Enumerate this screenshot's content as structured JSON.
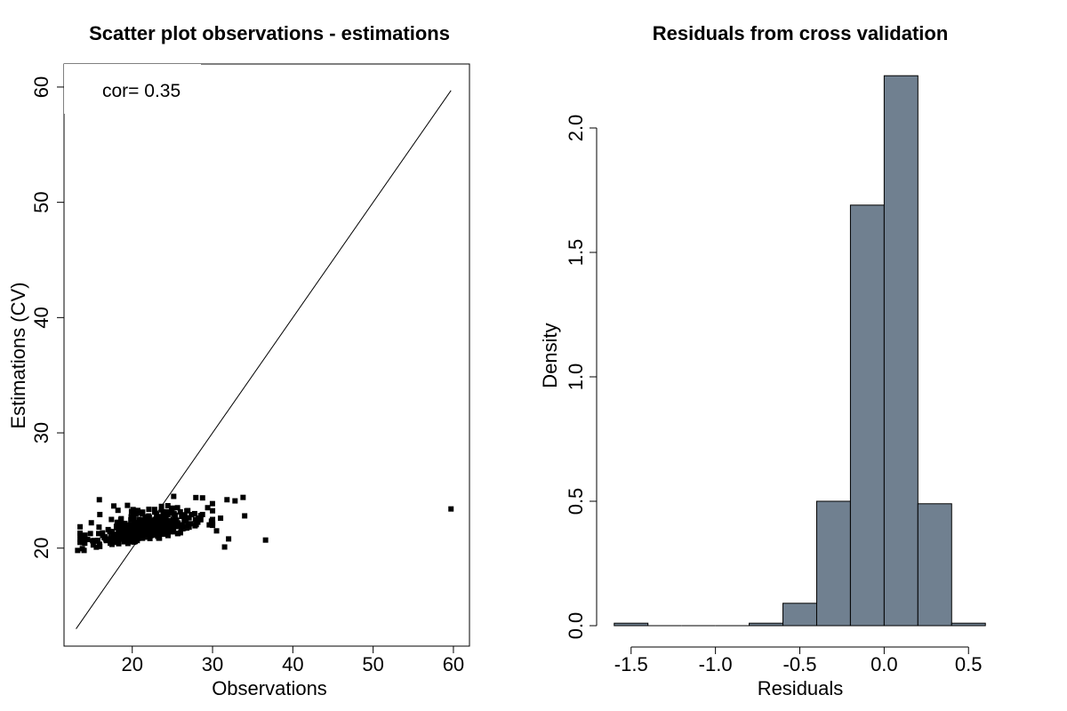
{
  "chart_data": [
    {
      "type": "scatter",
      "title": "Scatter plot observations - estimations",
      "xlabel": "Observations",
      "ylabel": "Estimations (CV)",
      "xlim": [
        11.5,
        62
      ],
      "ylim": [
        11.5,
        62
      ],
      "xticks": [
        20,
        30,
        40,
        50,
        60
      ],
      "yticks": [
        20,
        30,
        40,
        50,
        60
      ],
      "annotation": "cor= 0.35",
      "reference_line": {
        "x": [
          13,
          59.7
        ],
        "y": [
          13,
          59.7
        ]
      },
      "point_summary": {
        "count": 400,
        "x_range": [
          13,
          34
        ],
        "y_range": [
          19.5,
          24.5
        ],
        "center": [
          21.5,
          21.5
        ]
      },
      "points": [
        {
          "x": 59.7,
          "y": 23.4
        },
        {
          "x": 36.6,
          "y": 20.7
        },
        {
          "x": 34.0,
          "y": 22.8
        },
        {
          "x": 33.8,
          "y": 24.4
        },
        {
          "x": 32.8,
          "y": 24.1
        },
        {
          "x": 31.8,
          "y": 24.2
        },
        {
          "x": 32.0,
          "y": 20.8
        },
        {
          "x": 31.5,
          "y": 20.1
        },
        {
          "x": 31.0,
          "y": 22.6
        },
        {
          "x": 30.5,
          "y": 21.5
        },
        {
          "x": 14.0,
          "y": 19.8
        },
        {
          "x": 13.2,
          "y": 19.8
        },
        {
          "x": 14.9,
          "y": 22.2
        },
        {
          "x": 15.9,
          "y": 24.2
        }
      ],
      "marker": "square",
      "color": "#000000"
    },
    {
      "type": "bar",
      "subtype": "histogram",
      "title": "Residuals from cross validation",
      "xlabel": "Residuals",
      "ylabel": "Density",
      "xlim": [
        -1.62,
        0.62
      ],
      "ylim": [
        0,
        2.3
      ],
      "xticks": [
        -1.5,
        -1.0,
        -0.5,
        0.0,
        0.5
      ],
      "xtick_labels": [
        "-1.5",
        "-1.0",
        "-0.5",
        "0.0",
        "0.5"
      ],
      "yticks": [
        0.0,
        0.5,
        1.0,
        1.5,
        2.0
      ],
      "ytick_labels": [
        "0.0",
        "0.5",
        "1.0",
        "1.5",
        "2.0"
      ],
      "bin_edges": [
        -1.6,
        -1.4,
        -1.2,
        -1.0,
        -0.8,
        -0.6,
        -0.4,
        -0.2,
        0.0,
        0.2,
        0.4,
        0.6
      ],
      "values": [
        0.01,
        0,
        0,
        0,
        0.01,
        0.09,
        0.5,
        1.69,
        2.21,
        0.49,
        0.01
      ],
      "bar_color": "#708090",
      "edge_color": "#000000"
    }
  ]
}
